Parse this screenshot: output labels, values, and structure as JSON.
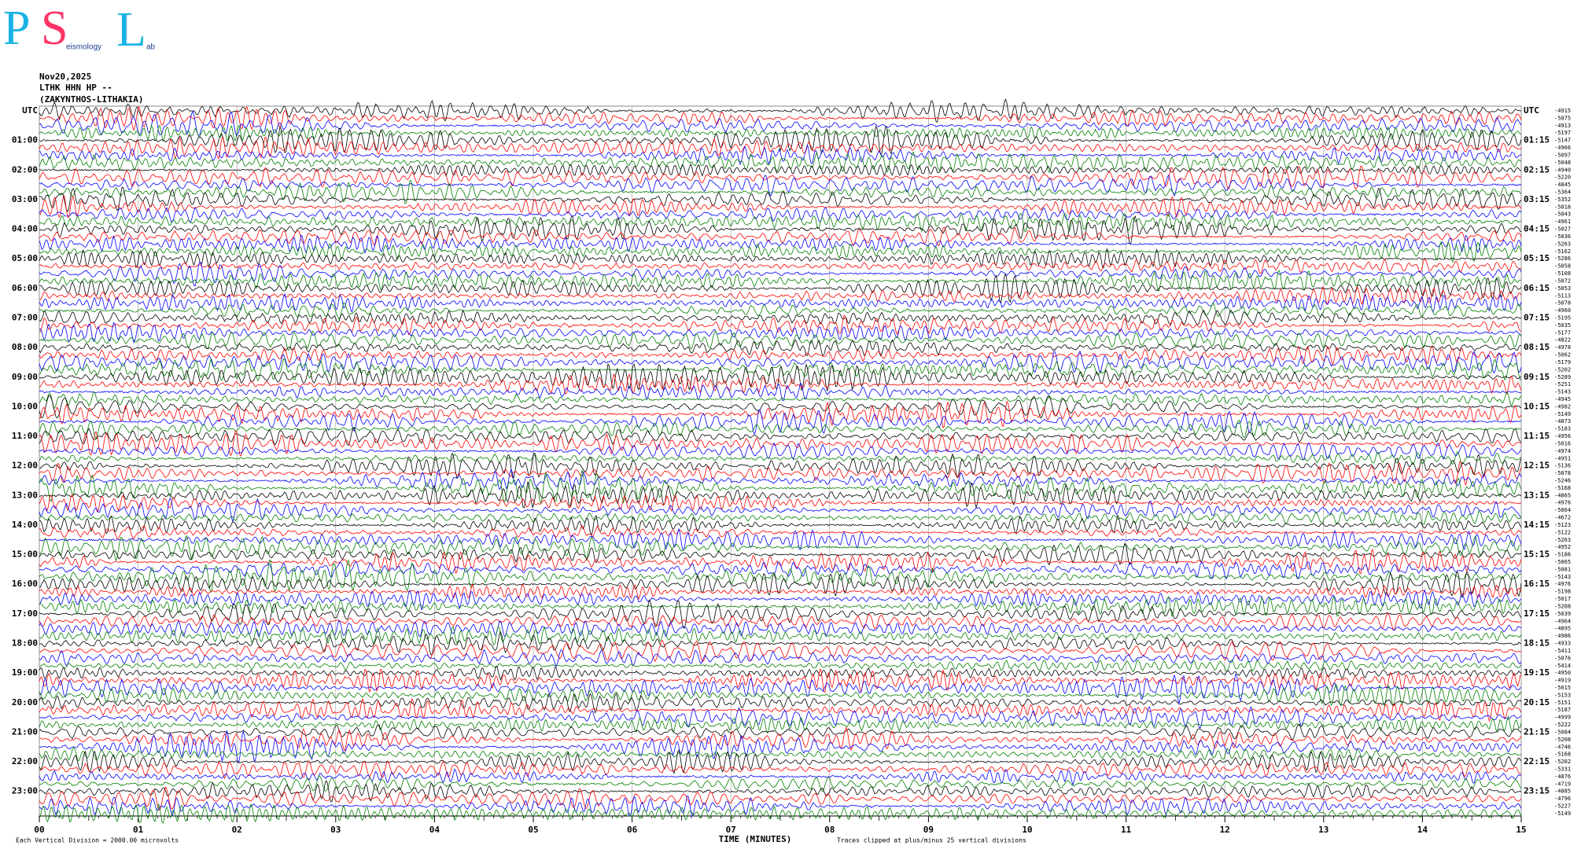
{
  "logo": {
    "p": "P",
    "s": "S",
    "l": "L",
    "s_word": "eismology",
    "l_word": "ab"
  },
  "header": {
    "date": "Nov20,2025",
    "station": "LTHK HHN HP --",
    "location": "(ZAKYNTHOS-LITHAKIA)"
  },
  "left_labels": [
    "UTC",
    "01:00",
    "02:00",
    "03:00",
    "04:00",
    "05:00",
    "06:00",
    "07:00",
    "08:00",
    "09:00",
    "10:00",
    "11:00",
    "12:00",
    "13:00",
    "14:00",
    "15:00",
    "16:00",
    "17:00",
    "18:00",
    "19:00",
    "20:00",
    "21:00",
    "22:00",
    "23:00"
  ],
  "right_labels": [
    "UTC",
    "01:15",
    "02:15",
    "03:15",
    "04:15",
    "05:15",
    "06:15",
    "07:15",
    "08:15",
    "09:15",
    "10:15",
    "11:15",
    "12:15",
    "13:15",
    "14:15",
    "15:15",
    "16:15",
    "17:15",
    "18:15",
    "19:15",
    "20:15",
    "21:15",
    "22:15",
    "23:15"
  ],
  "trace_offsets": [
    -4915,
    -5075,
    -4913,
    -5197,
    -5147,
    -4966,
    -5097,
    -5048,
    -4940,
    -5220,
    -4845,
    -5364,
    -5352,
    -5018,
    -5043,
    -4961,
    -5027,
    -5036,
    -5263,
    -5162,
    -5286,
    -5058,
    -5108,
    -5072,
    -5053,
    -5113,
    -5078,
    -4960,
    -5195,
    -5035,
    -5177,
    -4822,
    -4978,
    -5062,
    -5179,
    -5202,
    -5289,
    -5251,
    -5143,
    -4945,
    -4982,
    -5149,
    -4873,
    -5183,
    -4956,
    -5016,
    -4974,
    -4951,
    -5136,
    -5078,
    -5246,
    -5168,
    -4865,
    -4976,
    -5064,
    -4672,
    -5123,
    -5122,
    -5263,
    -4952,
    -5186,
    -5065,
    -5081,
    -5143,
    -4976,
    -5198,
    -5017,
    -5208,
    -5039,
    -4964,
    -4895,
    -4986,
    -4933,
    -5411,
    -5076,
    -5414,
    -4950,
    -4919,
    -5015,
    -5153,
    -5151,
    -5187,
    -4999,
    -5222,
    -5084,
    -5208,
    -4746,
    -5168,
    -5202,
    -5331,
    -4876,
    -4719,
    -4885,
    -4796,
    -5227,
    -5149
  ],
  "trace_colors": [
    "#000000",
    "#ff0000",
    "#0000ff",
    "#008000"
  ],
  "x_axis": {
    "ticks": [
      "00",
      "01",
      "02",
      "03",
      "04",
      "05",
      "06",
      "07",
      "08",
      "09",
      "10",
      "11",
      "12",
      "13",
      "14",
      "15"
    ],
    "title": "TIME (MINUTES)"
  },
  "footer": {
    "division": "Each Vertical Division = 2000.00 microvolts",
    "clipping": "Traces clipped at plus/minus 25 vertical divisions"
  }
}
